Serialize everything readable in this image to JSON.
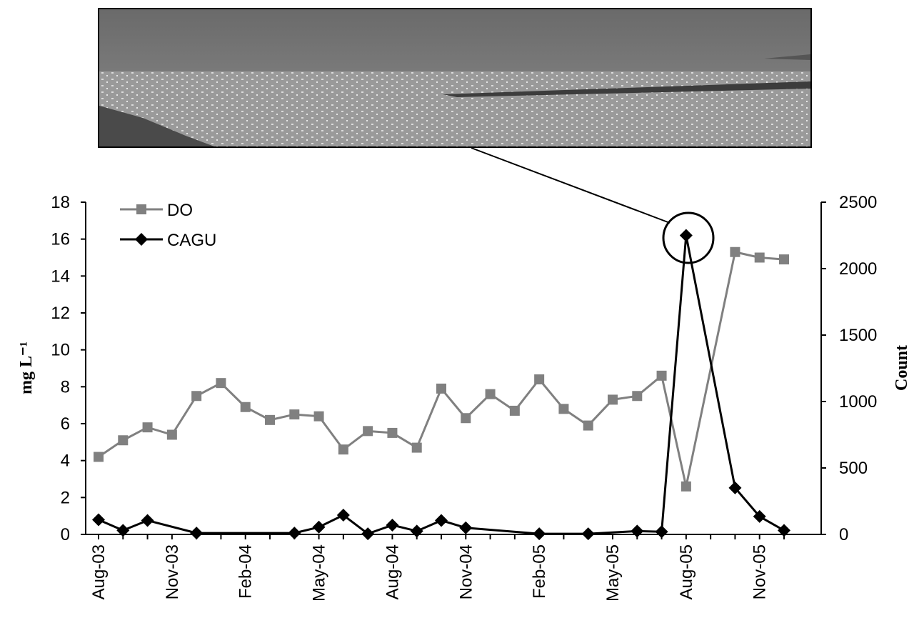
{
  "chart_data": {
    "type": "line",
    "y_label": "mg L⁻¹",
    "y2_label": "Count",
    "categories": [
      "Aug-03",
      null,
      null,
      "Nov-03",
      null,
      null,
      "Feb-04",
      null,
      null,
      "May-04",
      null,
      null,
      "Aug-04",
      null,
      null,
      "Nov-04",
      null,
      null,
      "Feb-05",
      null,
      null,
      "May-05",
      null,
      null,
      "Aug-05",
      null,
      null,
      "Nov-05",
      null
    ],
    "series": [
      {
        "name": "DO",
        "color": "#808080",
        "marker": "square",
        "axis": "y",
        "values": [
          4.2,
          5.1,
          5.8,
          5.4,
          7.5,
          8.2,
          6.9,
          6.2,
          6.5,
          6.4,
          4.6,
          5.6,
          5.5,
          4.7,
          7.9,
          6.3,
          7.6,
          6.7,
          8.4,
          6.8,
          5.9,
          7.3,
          7.5,
          8.6,
          2.6,
          null,
          15.3,
          15.0,
          14.9
        ]
      },
      {
        "name": "CAGU",
        "color": "#000000",
        "marker": "diamond",
        "axis": "y2",
        "values": [
          110,
          30,
          105,
          null,
          10,
          null,
          null,
          null,
          10,
          55,
          145,
          5,
          70,
          25,
          105,
          50,
          null,
          null,
          5,
          null,
          5,
          null,
          25,
          20,
          2250,
          null,
          350,
          135,
          30
        ]
      }
    ],
    "ylim": [
      0,
      18
    ],
    "yticks": [
      0,
      2,
      4,
      6,
      8,
      10,
      12,
      14,
      16,
      18
    ],
    "y2lim": [
      0,
      2500
    ],
    "y2ticks": [
      0,
      500,
      1000,
      1500,
      2000,
      2500
    ],
    "grid": false,
    "legend": "upper left"
  }
}
